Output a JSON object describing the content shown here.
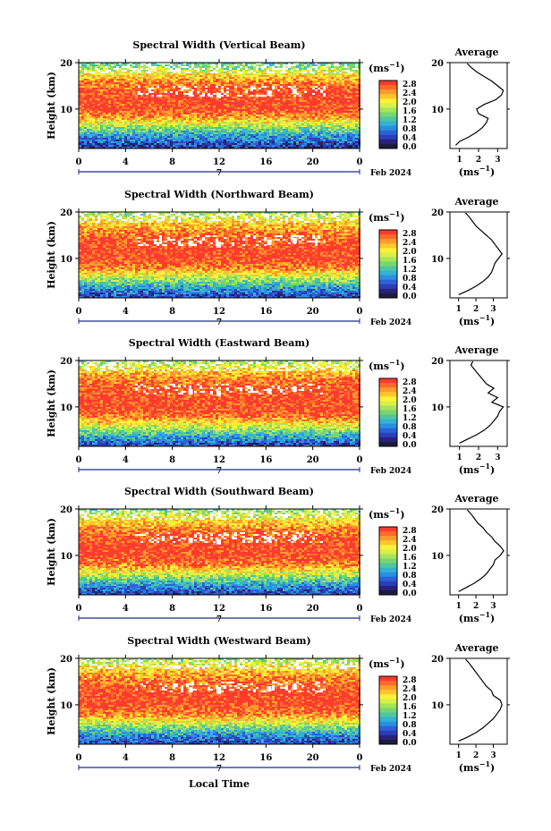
{
  "figure": {
    "xlabel": "Local Time",
    "date_day": "7",
    "month_label": "Feb 2024",
    "unit_label": "(ms",
    "unit_exp": "−1",
    "unit_close": ")",
    "avg_title": "Average"
  },
  "colorbar": {
    "ticks": [
      "2.8",
      "2.4",
      "2.0",
      "1.6",
      "1.2",
      "0.8",
      "0.4",
      "0.0"
    ],
    "colors": [
      "#ff3b2e",
      "#ff6a2a",
      "#ff9b2c",
      "#ffc62e",
      "#fff236",
      "#d8f04a",
      "#a6e35a",
      "#78d66e",
      "#4fc6a0",
      "#33b2d2",
      "#2a8fe2",
      "#2c62d8",
      "#2b3fb8",
      "#29227d",
      "#1c1c3c"
    ]
  },
  "chart_data": [
    {
      "type": "heatmap",
      "title": "Spectral Width (Vertical Beam)",
      "xlabel": "Local Time",
      "ylabel": "Height (km)",
      "x_ticks": [
        "0",
        "4",
        "8",
        "12",
        "16",
        "20",
        "0"
      ],
      "y_ticks": [
        "20",
        "10"
      ],
      "xlim": [
        0,
        24
      ],
      "ylim": [
        1.5,
        20
      ],
      "zlim": [
        0,
        3
      ],
      "z_unit": "ms-1",
      "height_profile_km": [
        2,
        4,
        6,
        8,
        10,
        12,
        14,
        16,
        18,
        20
      ],
      "width_ms": [
        0.4,
        0.9,
        1.6,
        2.5,
        3.0,
        3.0,
        2.9,
        2.6,
        2.0,
        1.2
      ],
      "average_profile": {
        "title": "Average",
        "xlabel": "(ms-1)",
        "x_ticks": [
          "1",
          "2",
          "3"
        ],
        "xlim": [
          0.5,
          3.5
        ],
        "y_ticks": [
          "20",
          "10"
        ],
        "height_km": [
          2.2,
          3,
          4,
          5,
          6,
          7,
          8,
          9,
          10,
          11,
          12,
          13,
          14,
          15,
          16,
          17,
          18,
          19,
          19.8
        ],
        "width_ms": [
          0.8,
          1.0,
          1.5,
          1.9,
          2.2,
          2.4,
          2.5,
          2.0,
          1.9,
          2.3,
          2.9,
          3.2,
          3.3,
          3.0,
          2.7,
          2.3,
          1.9,
          1.6,
          1.4
        ]
      }
    },
    {
      "type": "heatmap",
      "title": "Spectral Width (Northward Beam)",
      "xlabel": "Local Time",
      "ylabel": "Height (km)",
      "x_ticks": [
        "0",
        "4",
        "8",
        "12",
        "16",
        "20",
        "0"
      ],
      "y_ticks": [
        "20",
        "10"
      ],
      "xlim": [
        0,
        24
      ],
      "ylim": [
        1.5,
        20
      ],
      "zlim": [
        0,
        3
      ],
      "z_unit": "ms-1",
      "height_profile_km": [
        2,
        4,
        6,
        8,
        10,
        12,
        14,
        16,
        18,
        20
      ],
      "width_ms": [
        0.5,
        1.1,
        1.9,
        2.7,
        3.0,
        3.0,
        2.9,
        2.6,
        2.2,
        1.6
      ],
      "average_profile": {
        "title": "Average",
        "xlabel": "(ms-1)",
        "x_ticks": [
          "1",
          "2",
          "3"
        ],
        "xlim": [
          0.5,
          3.8
        ],
        "y_ticks": [
          "20",
          "10"
        ],
        "height_km": [
          2.2,
          3,
          4,
          5,
          6,
          7,
          8,
          9,
          10,
          11,
          12,
          13,
          14,
          15,
          16,
          17,
          18,
          19,
          19.8
        ],
        "width_ms": [
          1.0,
          1.5,
          2.0,
          2.4,
          2.7,
          2.9,
          3.0,
          3.1,
          3.3,
          3.5,
          3.3,
          3.1,
          2.9,
          2.6,
          2.3,
          2.0,
          1.8,
          1.6,
          1.4
        ]
      }
    },
    {
      "type": "heatmap",
      "title": "Spectral Width (Eastward Beam)",
      "xlabel": "Local Time",
      "ylabel": "Height (km)",
      "x_ticks": [
        "0",
        "4",
        "8",
        "12",
        "16",
        "20",
        "0"
      ],
      "y_ticks": [
        "20",
        "10"
      ],
      "xlim": [
        0,
        24
      ],
      "ylim": [
        1.5,
        20
      ],
      "zlim": [
        0,
        3
      ],
      "z_unit": "ms-1",
      "height_profile_km": [
        2,
        4,
        6,
        8,
        10,
        12,
        14,
        16,
        18,
        20
      ],
      "width_ms": [
        0.5,
        1.2,
        2.0,
        2.8,
        3.0,
        3.0,
        2.9,
        2.7,
        2.2,
        1.6
      ],
      "average_profile": {
        "title": "Average",
        "xlabel": "(ms-1)",
        "x_ticks": [
          "1",
          "2",
          "3"
        ],
        "xlim": [
          0.5,
          3.5
        ],
        "y_ticks": [
          "20",
          "10"
        ],
        "height_km": [
          2.2,
          3,
          4,
          5,
          6,
          7,
          8,
          9,
          10,
          11,
          12,
          13,
          14,
          15,
          16,
          17,
          18,
          19,
          19.8
        ],
        "width_ms": [
          1.0,
          1.4,
          1.9,
          2.3,
          2.6,
          2.8,
          3.0,
          3.1,
          3.3,
          2.7,
          3.0,
          2.5,
          2.8,
          2.4,
          2.2,
          2.0,
          1.8,
          1.6,
          1.7
        ]
      }
    },
    {
      "type": "heatmap",
      "title": "Spectral Width (Southward Beam)",
      "xlabel": "Local Time",
      "ylabel": "Height (km)",
      "x_ticks": [
        "0",
        "4",
        "8",
        "12",
        "16",
        "20",
        "0"
      ],
      "y_ticks": [
        "20",
        "10"
      ],
      "xlim": [
        0,
        24
      ],
      "ylim": [
        1.5,
        20
      ],
      "zlim": [
        0,
        3
      ],
      "z_unit": "ms-1",
      "height_profile_km": [
        2,
        4,
        6,
        8,
        10,
        12,
        14,
        16,
        18,
        20
      ],
      "width_ms": [
        0.5,
        1.1,
        1.9,
        2.7,
        3.0,
        3.0,
        2.9,
        2.6,
        2.1,
        1.5
      ],
      "average_profile": {
        "title": "Average",
        "xlabel": "(ms-1)",
        "x_ticks": [
          "1",
          "2",
          "3"
        ],
        "xlim": [
          0.5,
          3.8
        ],
        "y_ticks": [
          "20",
          "10"
        ],
        "height_km": [
          2.2,
          3,
          4,
          5,
          6,
          7,
          8,
          9,
          10,
          11,
          12,
          13,
          14,
          15,
          16,
          17,
          18,
          19,
          19.8
        ],
        "width_ms": [
          1.0,
          1.4,
          1.9,
          2.3,
          2.6,
          2.8,
          3.0,
          3.1,
          3.4,
          3.6,
          3.4,
          3.1,
          2.9,
          2.6,
          2.4,
          2.1,
          1.9,
          1.7,
          1.5
        ]
      }
    },
    {
      "type": "heatmap",
      "title": "Spectral Width (Westward Beam)",
      "xlabel": "Local Time",
      "ylabel": "Height (km)",
      "x_ticks": [
        "0",
        "4",
        "8",
        "12",
        "16",
        "20",
        "0"
      ],
      "y_ticks": [
        "20",
        "10"
      ],
      "xlim": [
        0,
        24
      ],
      "ylim": [
        1.5,
        20
      ],
      "zlim": [
        0,
        3
      ],
      "z_unit": "ms-1",
      "height_profile_km": [
        2,
        4,
        6,
        8,
        10,
        12,
        14,
        16,
        18,
        20
      ],
      "width_ms": [
        0.5,
        1.1,
        1.9,
        2.7,
        3.0,
        3.0,
        2.9,
        2.6,
        2.2,
        1.6
      ],
      "average_profile": {
        "title": "Average",
        "xlabel": "(ms-1)",
        "x_ticks": [
          "1",
          "2",
          "3"
        ],
        "xlim": [
          0.5,
          3.8
        ],
        "y_ticks": [
          "20",
          "10"
        ],
        "height_km": [
          2.2,
          3,
          4,
          5,
          6,
          7,
          8,
          9,
          10,
          11,
          12,
          13,
          14,
          15,
          16,
          17,
          18,
          19,
          19.8
        ],
        "width_ms": [
          1.0,
          1.5,
          2.0,
          2.4,
          2.7,
          3.0,
          3.2,
          3.4,
          3.5,
          3.4,
          3.0,
          2.9,
          2.6,
          2.4,
          2.2,
          2.0,
          1.8,
          1.6,
          1.4
        ]
      }
    }
  ]
}
